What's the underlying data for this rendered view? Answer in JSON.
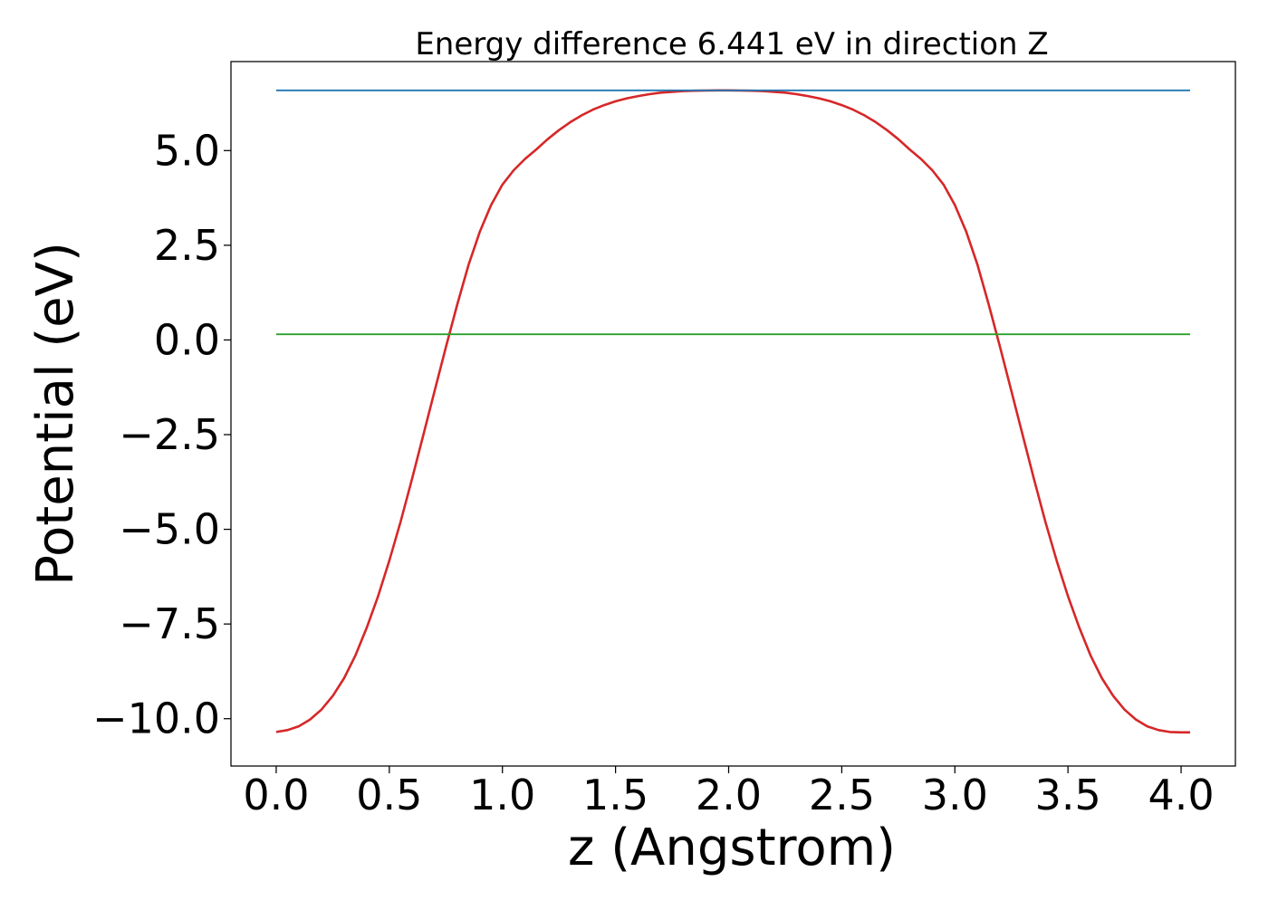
{
  "chart_data": {
    "type": "line",
    "title": "Energy difference 6.441 eV in direction Z",
    "xlabel": "z (Angstrom)",
    "ylabel": "Potential (eV)",
    "xlim": [
      -0.2,
      4.24
    ],
    "ylim": [
      -11.25,
      7.35
    ],
    "xticks": [
      0.0,
      0.5,
      1.0,
      1.5,
      2.0,
      2.5,
      3.0,
      3.5,
      4.0
    ],
    "xtick_labels": [
      "0.0",
      "0.5",
      "1.0",
      "1.5",
      "2.0",
      "2.5",
      "3.0",
      "3.5",
      "4.0"
    ],
    "yticks": [
      -10.0,
      -7.5,
      -5.0,
      -2.5,
      0.0,
      2.5,
      5.0
    ],
    "ytick_labels": [
      "−10.0",
      "−7.5",
      "−5.0",
      "−2.5",
      "0.0",
      "2.5",
      "5.0"
    ],
    "grid": false,
    "series": [
      {
        "color": "#d62728",
        "x": [
          0.0,
          0.05,
          0.1,
          0.15,
          0.2,
          0.25,
          0.3,
          0.35,
          0.4,
          0.45,
          0.5,
          0.55,
          0.6,
          0.65,
          0.7,
          0.75,
          0.8,
          0.85,
          0.9,
          0.95,
          1.0,
          1.05,
          1.1,
          1.15,
          1.2,
          1.25,
          1.3,
          1.35,
          1.4,
          1.45,
          1.5,
          1.55,
          1.6,
          1.65,
          1.7,
          1.75,
          1.8,
          1.85,
          1.9,
          1.95,
          2.0,
          2.05,
          2.1,
          2.15,
          2.2,
          2.25,
          2.3,
          2.35,
          2.4,
          2.45,
          2.5,
          2.55,
          2.6,
          2.65,
          2.7,
          2.75,
          2.8,
          2.85,
          2.9,
          2.95,
          3.0,
          3.05,
          3.1,
          3.15,
          3.2,
          3.25,
          3.3,
          3.35,
          3.4,
          3.45,
          3.5,
          3.55,
          3.6,
          3.65,
          3.7,
          3.75,
          3.8,
          3.85,
          3.9,
          3.95,
          4.0,
          4.04
        ],
        "y": [
          -10.35,
          -10.3,
          -10.2,
          -10.02,
          -9.76,
          -9.4,
          -8.93,
          -8.33,
          -7.6,
          -6.77,
          -5.83,
          -4.8,
          -3.68,
          -2.52,
          -1.35,
          -0.19,
          0.93,
          1.98,
          2.86,
          3.56,
          4.1,
          4.48,
          4.78,
          5.03,
          5.3,
          5.54,
          5.75,
          5.93,
          6.08,
          6.2,
          6.3,
          6.38,
          6.44,
          6.49,
          6.53,
          6.55,
          6.57,
          6.58,
          6.585,
          6.59,
          6.59,
          6.585,
          6.58,
          6.57,
          6.55,
          6.53,
          6.49,
          6.44,
          6.38,
          6.3,
          6.2,
          6.08,
          5.93,
          5.75,
          5.54,
          5.3,
          5.03,
          4.78,
          4.48,
          4.1,
          3.56,
          2.86,
          1.98,
          0.93,
          -0.19,
          -1.35,
          -2.52,
          -3.68,
          -4.8,
          -5.83,
          -6.77,
          -7.6,
          -8.33,
          -8.93,
          -9.4,
          -9.76,
          -10.02,
          -10.2,
          -10.3,
          -10.35,
          -10.36,
          -10.36
        ]
      },
      {
        "color": "#1f77b4",
        "x": [
          0.0,
          4.04
        ],
        "y": [
          6.59,
          6.59
        ]
      },
      {
        "color": "#2ca02c",
        "x": [
          0.0,
          4.04
        ],
        "y": [
          0.15,
          0.15
        ]
      }
    ]
  }
}
